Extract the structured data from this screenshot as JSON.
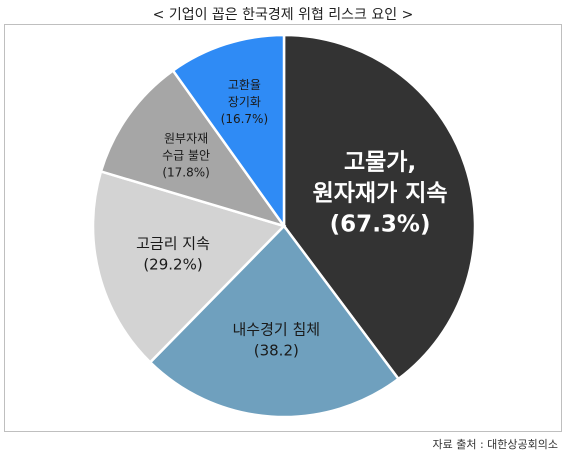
{
  "title": "< 기업이 꼽은 한국경제 위협 리스크 요인 >",
  "source": "자료 출처 : 대한상공회의소",
  "chart_data": {
    "type": "pie",
    "slices": [
      {
        "label_lines": [
          "고물가,",
          "원자재가 지속"
        ],
        "value_label": "(67.3%)",
        "value": 67.3,
        "color": "#333333",
        "text_color": "#ffffff"
      },
      {
        "label_lines": [
          "내수경기 침체"
        ],
        "value_label": "(38.2)",
        "value": 38.2,
        "color": "#6fa0be",
        "text_color": "#1a1a1a"
      },
      {
        "label_lines": [
          "고금리 지속"
        ],
        "value_label": "(29.2%)",
        "value": 29.2,
        "color": "#d3d3d3",
        "text_color": "#1a1a1a"
      },
      {
        "label_lines": [
          "원부자재",
          "수급 불안"
        ],
        "value_label": "(17.8%)",
        "value": 17.8,
        "color": "#a6a6a6",
        "text_color": "#1a1a1a"
      },
      {
        "label_lines": [
          "고환율",
          "장기화"
        ],
        "value_label": "(16.7%)",
        "value": 16.7,
        "color": "#2f8bf5",
        "text_color": "#1a1a1a"
      }
    ]
  }
}
